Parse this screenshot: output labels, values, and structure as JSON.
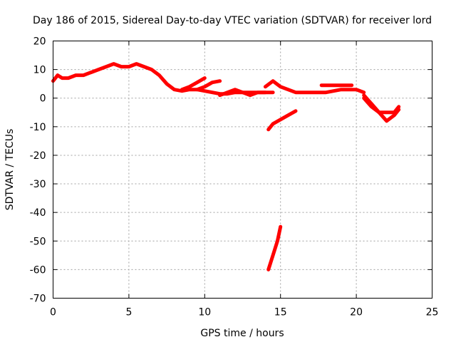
{
  "chart_data": {
    "type": "line",
    "title": "Day 186 of 2015, Sidereal Day-to-day VTEC variation (SDTVAR) for receiver lord",
    "xlabel": "GPS time / hours",
    "ylabel": "SDTVAR / TECUs",
    "xlim": [
      0,
      25
    ],
    "ylim": [
      -70,
      20
    ],
    "xticks": [
      0,
      5,
      10,
      15,
      20,
      25
    ],
    "yticks": [
      -70,
      -60,
      -50,
      -40,
      -30,
      -20,
      -10,
      0,
      10,
      20
    ],
    "grid": true,
    "color": "#ff0000",
    "series": [
      {
        "name": "arc-main",
        "x": [
          0.0,
          0.3,
          0.6,
          1.0,
          1.5,
          2.0,
          2.5,
          3.0,
          3.5,
          4.0,
          4.5,
          5.0,
          5.5,
          6.0,
          6.5,
          7.0,
          7.5,
          8.0,
          8.5,
          9.0,
          9.5,
          10.0,
          10.5,
          11.0,
          11.5,
          12.0,
          12.5,
          13.0,
          13.5,
          14.0
        ],
        "y": [
          6,
          8,
          7,
          7,
          8,
          8,
          9,
          10,
          11,
          12,
          11,
          11,
          12,
          11,
          10,
          8,
          5,
          3,
          2.5,
          3,
          3,
          2.5,
          2,
          1.5,
          1.5,
          2,
          2,
          2,
          2,
          2
        ]
      },
      {
        "name": "arc-branch-a",
        "x": [
          8.5,
          9.0,
          9.5,
          10.0
        ],
        "y": [
          3,
          4,
          5.5,
          7
        ]
      },
      {
        "name": "arc-branch-b",
        "x": [
          9.5,
          10.0,
          10.5,
          11.0
        ],
        "y": [
          3,
          4,
          5.5,
          6
        ]
      },
      {
        "name": "arc-branch-c",
        "x": [
          11.0,
          11.5,
          12.0,
          12.5,
          13.0,
          13.5,
          14.0,
          14.5
        ],
        "y": [
          1,
          2,
          3,
          2,
          1,
          2,
          2,
          2
        ]
      },
      {
        "name": "arc-mid",
        "x": [
          14.0,
          14.5,
          15.0,
          15.5,
          16.0,
          16.5,
          17.0,
          17.5,
          18.0,
          18.5,
          19.0,
          19.5,
          20.0,
          20.5
        ],
        "y": [
          4,
          6,
          4,
          3,
          2,
          2,
          2,
          2,
          2,
          2.5,
          3,
          3,
          3,
          2
        ]
      },
      {
        "name": "arc-upper-dash",
        "x": [
          17.7,
          18.2,
          18.7,
          19.2,
          19.7
        ],
        "y": [
          4.5,
          4.5,
          4.5,
          4.5,
          4.5
        ]
      },
      {
        "name": "arc-late-a",
        "x": [
          20.5,
          21.0,
          21.5,
          22.0,
          22.5,
          22.8
        ],
        "y": [
          1,
          -2,
          -5,
          -8,
          -6,
          -4
        ]
      },
      {
        "name": "arc-late-b",
        "x": [
          20.5,
          21.0,
          21.5,
          22.0,
          22.5,
          22.8
        ],
        "y": [
          0,
          -3,
          -5,
          -5,
          -5,
          -3
        ]
      },
      {
        "name": "arc-low",
        "x": [
          14.2,
          14.5,
          15.0,
          15.5,
          16.0
        ],
        "y": [
          -11,
          -9,
          -7.5,
          -6,
          -4.5
        ]
      },
      {
        "name": "arc-outlier",
        "x": [
          14.2,
          14.5,
          14.8,
          15.0
        ],
        "y": [
          -60,
          -55,
          -50,
          -45
        ]
      }
    ]
  }
}
